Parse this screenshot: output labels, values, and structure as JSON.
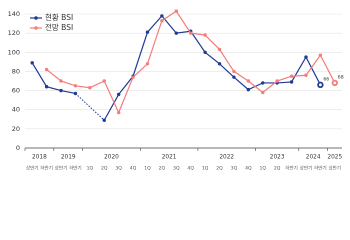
{
  "chart_data": {
    "type": "line",
    "categories": [
      "상반기",
      "하반기",
      "상반기",
      "하반기",
      "1Q",
      "2Q",
      "3Q",
      "4Q",
      "1Q",
      "2Q",
      "3Q",
      "4Q",
      "1Q",
      "2Q",
      "3Q",
      "4Q",
      "1Q",
      "2Q",
      "하반기",
      "상반기",
      "하반기",
      "상반기"
    ],
    "category_groups": [
      {
        "label": "2018",
        "count": 2
      },
      {
        "label": "2019",
        "count": 2
      },
      {
        "label": "2020",
        "count": 4
      },
      {
        "label": "2021",
        "count": 4
      },
      {
        "label": "2022",
        "count": 4
      },
      {
        "label": "2023",
        "count": 3
      },
      {
        "label": "2024",
        "count": 2
      },
      {
        "label": "2025",
        "count": 1
      }
    ],
    "series": [
      {
        "name": "현황 BSI",
        "color": "#1f3a93",
        "values": [
          89,
          64,
          60,
          57,
          null,
          29,
          56,
          75,
          121,
          138,
          120,
          122,
          100,
          88,
          74,
          61,
          68,
          68,
          69,
          95,
          66,
          null
        ]
      },
      {
        "name": "전망 BSI",
        "color": "#f47c7c",
        "values": [
          null,
          82,
          70,
          65,
          63,
          70,
          37,
          74,
          88,
          133,
          143,
          120,
          118,
          103,
          80,
          70,
          58,
          70,
          75,
          76,
          97,
          68
        ]
      }
    ],
    "ylim": [
      0,
      140
    ],
    "yticks": [
      0,
      20,
      40,
      60,
      80,
      100,
      120,
      140
    ],
    "grid": true,
    "legend": "top-left",
    "label_last_point": true,
    "bridge_gaps_dotted": true
  }
}
